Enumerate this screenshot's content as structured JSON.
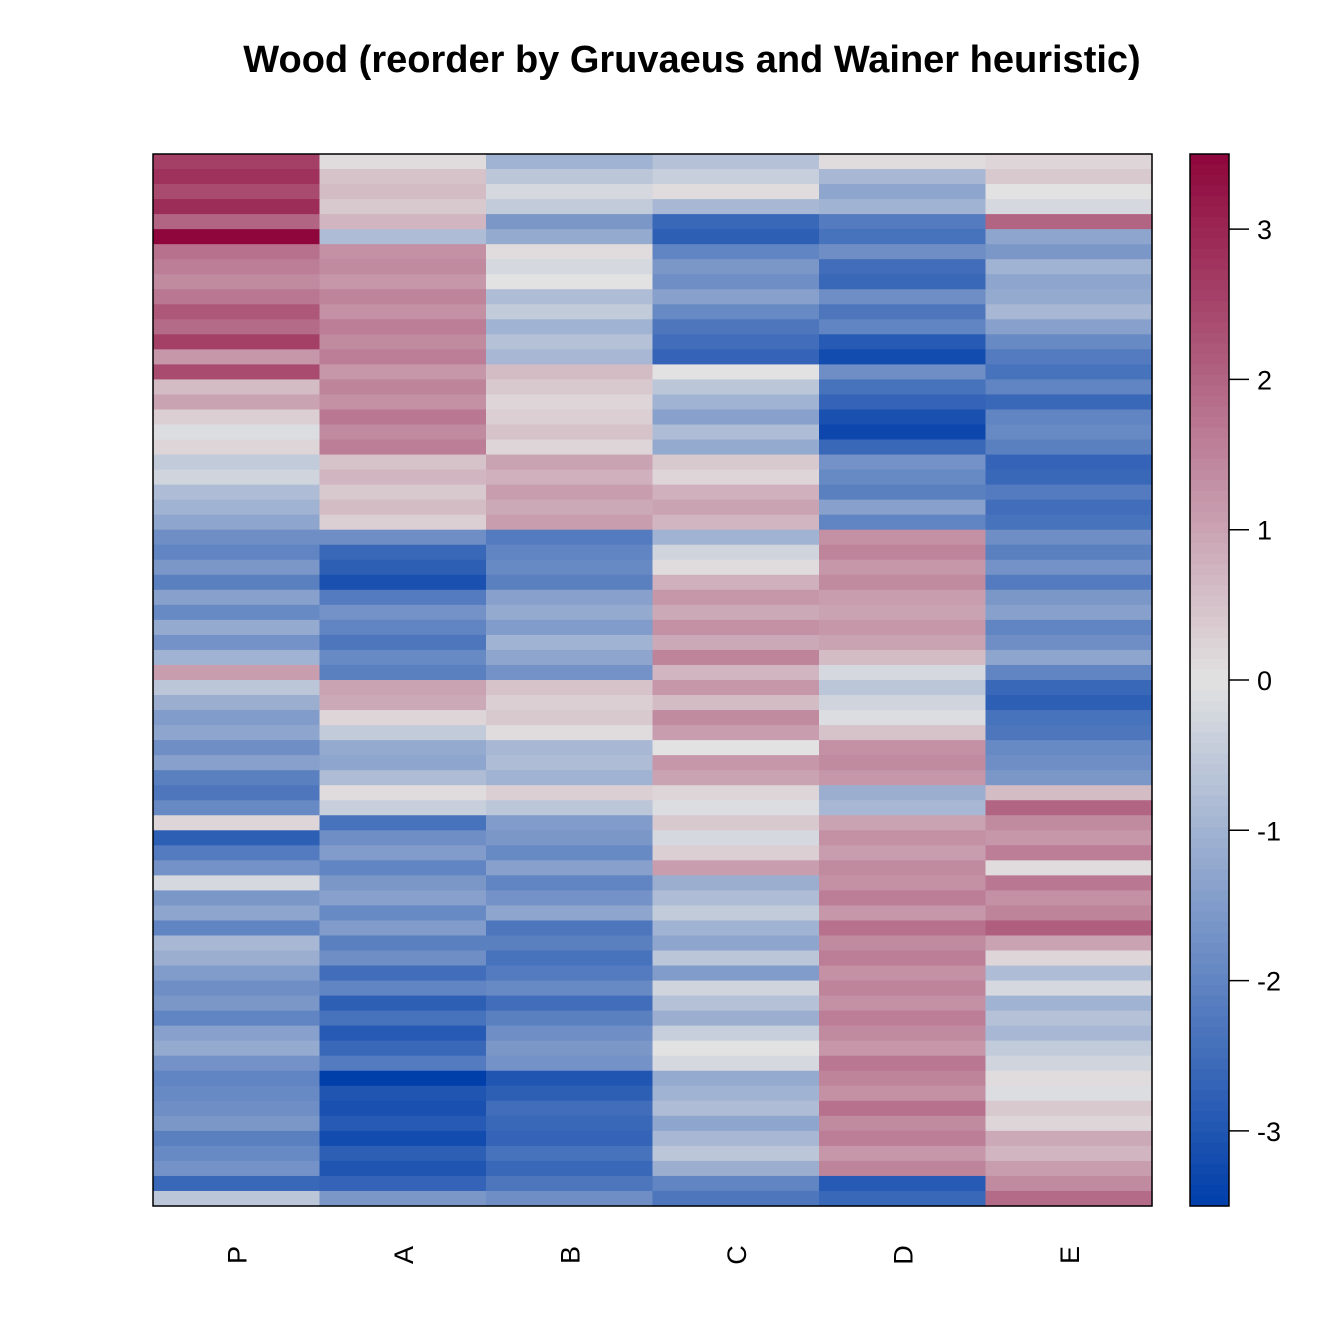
{
  "chart_data": {
    "type": "heatmap",
    "title": "Wood (reorder by Gruvaeus and Wainer heuristic)",
    "columns": [
      "P",
      "A",
      "B",
      "C",
      "D",
      "E"
    ],
    "n_rows": 70,
    "color_scale": {
      "min": -3.5,
      "max": 3.5,
      "low_color": "#003EAA",
      "mid_color": "#E2E2E2",
      "high_color": "#8E063B"
    },
    "legend_ticks": [
      3,
      2,
      1,
      0,
      -1,
      -2,
      -3
    ],
    "legend_tick_labels": [
      "3",
      "2",
      "1",
      "0",
      "-1",
      "-2",
      "-3"
    ],
    "legend_placement": "right",
    "values": [
      [
        2.6,
        0.1,
        -1.0,
        -0.7,
        0.1,
        0.2
      ],
      [
        2.8,
        0.5,
        -0.6,
        -0.4,
        -0.9,
        0.4
      ],
      [
        2.4,
        0.6,
        -0.2,
        0.1,
        -1.3,
        0.0
      ],
      [
        2.9,
        0.4,
        -0.5,
        -0.9,
        -1.0,
        -0.2
      ],
      [
        2.0,
        0.7,
        -1.6,
        -2.6,
        -2.2,
        2.0
      ],
      [
        3.5,
        -0.8,
        -1.2,
        -2.8,
        -2.4,
        -1.3
      ],
      [
        1.8,
        1.3,
        0.1,
        -2.0,
        -1.8,
        -1.6
      ],
      [
        1.6,
        1.4,
        -0.2,
        -1.6,
        -2.5,
        -1.0
      ],
      [
        1.4,
        1.2,
        0.0,
        -1.8,
        -2.6,
        -1.3
      ],
      [
        1.7,
        1.5,
        -0.8,
        -1.4,
        -1.8,
        -1.2
      ],
      [
        2.2,
        1.3,
        -0.5,
        -1.9,
        -2.3,
        -0.9
      ],
      [
        1.9,
        1.6,
        -1.0,
        -2.3,
        -2.0,
        -1.4
      ],
      [
        2.6,
        1.4,
        -0.7,
        -2.5,
        -2.9,
        -1.9
      ],
      [
        1.2,
        1.6,
        -0.9,
        -2.7,
        -3.2,
        -2.2
      ],
      [
        2.4,
        1.2,
        0.6,
        0.0,
        -1.8,
        -2.4
      ],
      [
        0.6,
        1.5,
        0.4,
        -0.6,
        -2.4,
        -2.0
      ],
      [
        1.0,
        1.3,
        0.2,
        -1.0,
        -2.7,
        -2.6
      ],
      [
        0.3,
        1.7,
        0.3,
        -1.4,
        -3.1,
        -2.0
      ],
      [
        -0.1,
        1.4,
        0.5,
        -0.8,
        -3.3,
        -1.9
      ],
      [
        0.2,
        1.6,
        0.2,
        -1.2,
        -2.6,
        -2.1
      ],
      [
        -0.5,
        0.5,
        1.0,
        0.4,
        -1.7,
        -2.7
      ],
      [
        -0.3,
        0.7,
        0.8,
        0.2,
        -1.9,
        -2.6
      ],
      [
        -0.8,
        0.4,
        1.1,
        0.8,
        -2.1,
        -2.2
      ],
      [
        -1.0,
        0.6,
        0.9,
        1.0,
        -1.4,
        -2.5
      ],
      [
        -1.3,
        0.3,
        1.1,
        0.7,
        -2.0,
        -2.4
      ],
      [
        -1.8,
        -1.8,
        -2.2,
        -1.0,
        1.3,
        -1.8
      ],
      [
        -2.0,
        -2.6,
        -2.0,
        -0.3,
        1.5,
        -2.1
      ],
      [
        -1.6,
        -2.8,
        -1.9,
        0.1,
        1.2,
        -1.7
      ],
      [
        -2.1,
        -3.1,
        -2.1,
        0.8,
        1.4,
        -2.2
      ],
      [
        -1.4,
        -2.2,
        -1.4,
        1.2,
        1.1,
        -1.6
      ],
      [
        -1.9,
        -1.7,
        -1.2,
        0.9,
        1.0,
        -1.4
      ],
      [
        -1.2,
        -2.0,
        -1.5,
        1.3,
        1.2,
        -2.0
      ],
      [
        -1.7,
        -2.3,
        -1.0,
        0.9,
        1.0,
        -1.8
      ],
      [
        -1.0,
        -1.9,
        -1.3,
        1.5,
        0.6,
        -1.3
      ],
      [
        1.1,
        -2.1,
        -1.7,
        0.7,
        -0.2,
        -2.0
      ],
      [
        -0.6,
        1.0,
        0.5,
        1.2,
        -0.6,
        -2.6
      ],
      [
        -1.1,
        0.9,
        0.3,
        0.6,
        -0.3,
        -2.8
      ],
      [
        -1.5,
        0.2,
        0.4,
        1.4,
        -0.1,
        -2.4
      ],
      [
        -1.3,
        -0.5,
        0.1,
        1.1,
        0.5,
        -2.3
      ],
      [
        -1.8,
        -1.2,
        -0.9,
        0.0,
        1.3,
        -1.9
      ],
      [
        -1.4,
        -1.3,
        -0.8,
        1.2,
        1.4,
        -1.8
      ],
      [
        -2.1,
        -0.8,
        -1.0,
        1.0,
        1.2,
        -1.6
      ],
      [
        -2.3,
        0.1,
        0.3,
        0.2,
        -1.1,
        0.6
      ],
      [
        -1.9,
        -0.4,
        -0.6,
        -0.1,
        -0.9,
        2.0
      ],
      [
        0.2,
        -2.4,
        -1.5,
        0.4,
        1.0,
        1.4
      ],
      [
        -2.8,
        -1.8,
        -1.6,
        -0.2,
        1.3,
        1.2
      ],
      [
        -2.2,
        -1.5,
        -1.9,
        0.3,
        1.1,
        1.6
      ],
      [
        -1.7,
        -2.0,
        -1.4,
        1.1,
        1.4,
        0.1
      ],
      [
        -0.2,
        -1.6,
        -2.0,
        -1.1,
        1.3,
        1.7
      ],
      [
        -1.6,
        -1.4,
        -1.7,
        -0.8,
        1.6,
        1.3
      ],
      [
        -1.3,
        -1.9,
        -1.3,
        -0.5,
        1.2,
        1.5
      ],
      [
        -2.0,
        -1.5,
        -2.3,
        -1.0,
        1.8,
        2.1
      ],
      [
        -0.9,
        -2.1,
        -2.1,
        -1.3,
        1.4,
        1.0
      ],
      [
        -1.1,
        -1.8,
        -2.4,
        -0.6,
        1.6,
        0.2
      ],
      [
        -1.5,
        -2.5,
        -2.2,
        -1.5,
        1.3,
        -0.8
      ],
      [
        -1.8,
        -2.0,
        -1.9,
        -0.3,
        1.5,
        -0.2
      ],
      [
        -1.6,
        -2.8,
        -2.5,
        -0.7,
        1.3,
        -1.0
      ],
      [
        -2.0,
        -2.4,
        -2.1,
        -1.1,
        1.6,
        -0.7
      ],
      [
        -1.4,
        -2.9,
        -1.8,
        -0.4,
        1.4,
        -0.9
      ],
      [
        -1.2,
        -2.6,
        -1.6,
        0.0,
        1.2,
        -0.5
      ],
      [
        -1.7,
        -2.2,
        -1.7,
        -0.2,
        1.7,
        -0.3
      ],
      [
        -2.0,
        -3.5,
        -3.0,
        -1.2,
        1.5,
        0.1
      ],
      [
        -1.9,
        -3.0,
        -2.8,
        -1.0,
        1.3,
        -0.1
      ],
      [
        -1.8,
        -3.1,
        -2.5,
        -0.8,
        1.8,
        0.4
      ],
      [
        -1.6,
        -2.9,
        -2.6,
        -1.3,
        1.4,
        0.2
      ],
      [
        -2.1,
        -3.2,
        -2.7,
        -0.9,
        1.6,
        0.9
      ],
      [
        -1.9,
        -2.8,
        -2.4,
        -0.6,
        1.2,
        0.7
      ],
      [
        -1.7,
        -3.0,
        -2.6,
        -1.1,
        1.5,
        1.1
      ],
      [
        -2.6,
        -2.7,
        -2.3,
        -2.0,
        -2.9,
        1.4
      ],
      [
        -0.6,
        -1.6,
        -1.8,
        -2.3,
        -2.6,
        1.9
      ]
    ]
  }
}
